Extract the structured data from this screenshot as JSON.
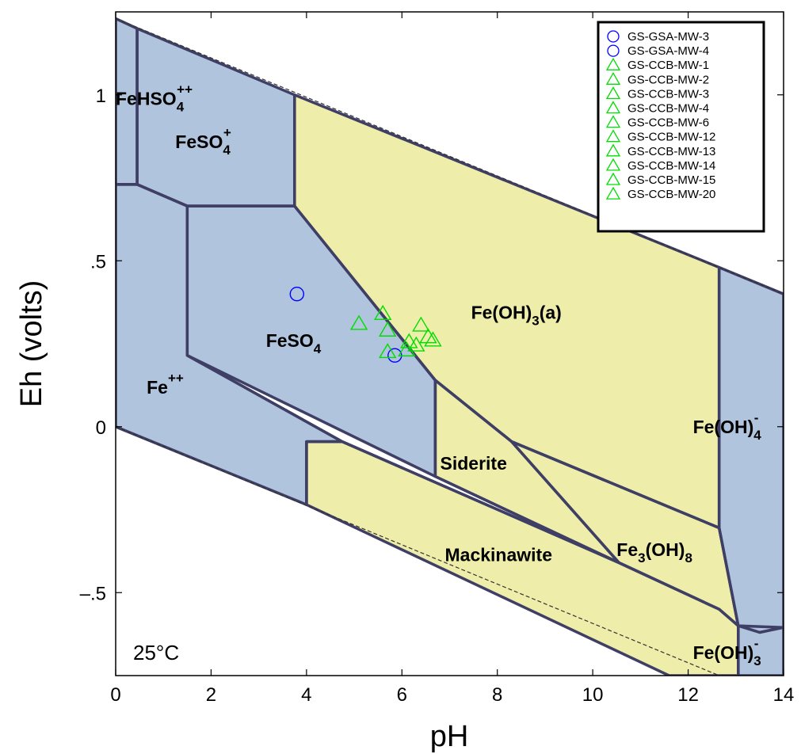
{
  "chart_data": {
    "type": "scatter",
    "title": "",
    "xlabel": "pH",
    "ylabel": "Eh (volts)",
    "xlim": [
      0,
      14
    ],
    "ylim": [
      -0.75,
      1.25
    ],
    "x_ticks": [
      {
        "value": 0,
        "label": "0"
      },
      {
        "value": 2,
        "label": "2"
      },
      {
        "value": 4,
        "label": "4"
      },
      {
        "value": 6,
        "label": "6"
      },
      {
        "value": 8,
        "label": "8"
      },
      {
        "value": 10,
        "label": "10"
      },
      {
        "value": 12,
        "label": "12"
      },
      {
        "value": 14,
        "label": "14"
      }
    ],
    "y_ticks": [
      {
        "value": -0.5,
        "label": "–.5"
      },
      {
        "value": 0,
        "label": "0"
      },
      {
        "value": 0.5,
        "label": ".5"
      },
      {
        "value": 1,
        "label": "1"
      }
    ],
    "temperature_label": "25°C",
    "colors": {
      "aqueous_field": "#b0c4de",
      "mineral_field": "#eeeeaa",
      "boundary": "#3f3f66",
      "gsa_marker": "#0000ff",
      "ccb_marker": "#00dd00"
    },
    "stability_fields": [
      {
        "name": "FeHSO4++",
        "kind": "aqueous",
        "main": "FeHSO",
        "sub": "4",
        "sup": "++",
        "x": 0.0,
        "y": 0.97,
        "polygon": [
          [
            0,
            1.23
          ],
          [
            0.45,
            1.2
          ],
          [
            0.45,
            0.73
          ],
          [
            0,
            0.73
          ]
        ]
      },
      {
        "name": "FeSO4+",
        "kind": "aqueous",
        "main": "FeSO",
        "sub": "4",
        "sup": "+",
        "x": 1.25,
        "y": 0.84,
        "polygon": [
          [
            0.45,
            1.2
          ],
          [
            3.75,
            1.0
          ],
          [
            3.75,
            0.665
          ],
          [
            1.5,
            0.665
          ],
          [
            0.45,
            0.73
          ]
        ]
      },
      {
        "name": "FeSO4",
        "kind": "aqueous",
        "main": "FeSO",
        "sub": "4",
        "sup": "",
        "x": 3.15,
        "y": 0.24,
        "polygon": [
          [
            1.5,
            0.665
          ],
          [
            3.75,
            0.665
          ],
          [
            6.7,
            0.14
          ],
          [
            6.7,
            -0.15
          ],
          [
            1.5,
            0.215
          ]
        ]
      },
      {
        "name": "Fe++",
        "kind": "aqueous",
        "main": "Fe",
        "sub": "",
        "sup": "++",
        "x": 0.65,
        "y": 0.1,
        "polygon": [
          [
            0,
            0.73
          ],
          [
            0.45,
            0.73
          ],
          [
            1.5,
            0.665
          ],
          [
            1.5,
            0.215
          ],
          [
            4.75,
            -0.045
          ],
          [
            4.0,
            -0.045
          ],
          [
            4.0,
            -0.235
          ],
          [
            0,
            0
          ]
        ]
      },
      {
        "name": "Fe(OH)3(a)",
        "kind": "mineral",
        "main": "Fe(OH)",
        "sub": "3",
        "sup": "",
        "x": 7.45,
        "y": 0.325,
        "suffix": "(a)",
        "polygon": [
          [
            3.75,
            1.0
          ],
          [
            12.65,
            0.48
          ],
          [
            12.65,
            -0.305
          ],
          [
            8.3,
            -0.045
          ],
          [
            6.7,
            0.14
          ],
          [
            3.75,
            0.665
          ]
        ]
      },
      {
        "name": "Siderite",
        "kind": "mineral",
        "main": "Siderite",
        "sub": "",
        "sup": "",
        "x": 6.8,
        "y": -0.13,
        "polygon": [
          [
            6.7,
            0.14
          ],
          [
            8.3,
            -0.045
          ],
          [
            10.55,
            -0.41
          ],
          [
            6.7,
            -0.15
          ]
        ]
      },
      {
        "name": "Mackinawite",
        "kind": "mineral",
        "main": "Mackinawite",
        "sub": "",
        "sup": "",
        "x": 6.9,
        "y": -0.405,
        "polygon": [
          [
            4.0,
            -0.045
          ],
          [
            4.75,
            -0.045
          ],
          [
            10.55,
            -0.41
          ],
          [
            12.65,
            -0.55
          ],
          [
            13.05,
            -0.6
          ],
          [
            13.05,
            -0.75
          ],
          [
            11.6,
            -0.75
          ],
          [
            4.0,
            -0.235
          ]
        ]
      },
      {
        "name": "Fe3(OH)8",
        "kind": "mineral",
        "main": "Fe",
        "sub": "3",
        "sup": "",
        "x": 10.5,
        "y": -0.39,
        "suffix": "(OH)",
        "sub2": "8",
        "polygon": [
          [
            8.3,
            -0.045
          ],
          [
            12.65,
            -0.305
          ],
          [
            13.05,
            -0.6
          ],
          [
            12.65,
            -0.55
          ],
          [
            10.55,
            -0.41
          ]
        ]
      },
      {
        "name": "Fe(OH)4-",
        "kind": "aqueous",
        "main": "Fe(OH)",
        "sub": "4",
        "sup": "-",
        "x": 12.1,
        "y": -0.02,
        "polygon": [
          [
            12.65,
            0.48
          ],
          [
            14,
            0.4
          ],
          [
            14,
            -0.605
          ],
          [
            13.5,
            -0.62
          ],
          [
            13.05,
            -0.6
          ],
          [
            12.65,
            -0.305
          ]
        ]
      },
      {
        "name": "Fe(OH)3-",
        "kind": "aqueous",
        "main": "Fe(OH)",
        "sub": "3",
        "sup": "-",
        "x": 12.1,
        "y": -0.7,
        "polygon": [
          [
            13.05,
            -0.6
          ],
          [
            13.5,
            -0.62
          ],
          [
            14,
            -0.605
          ],
          [
            14,
            -0.75
          ],
          [
            13.05,
            -0.75
          ]
        ]
      }
    ],
    "extra_boundaries": [
      [
        [
          0.45,
          1.2
        ],
        [
          0.45,
          0.73
        ],
        [
          0,
          0.73
        ]
      ],
      [
        [
          3.75,
          1.0
        ],
        [
          3.75,
          0.665
        ],
        [
          1.5,
          0.665
        ],
        [
          0.45,
          0.73
        ]
      ],
      [
        [
          1.5,
          0.665
        ],
        [
          1.5,
          0.215
        ],
        [
          4.75,
          -0.045
        ],
        [
          10.55,
          -0.41
        ],
        [
          12.65,
          -0.55
        ],
        [
          13.05,
          -0.6
        ]
      ],
      [
        [
          3.75,
          0.665
        ],
        [
          6.7,
          0.14
        ],
        [
          8.3,
          -0.045
        ],
        [
          12.65,
          -0.305
        ]
      ],
      [
        [
          6.7,
          0.14
        ],
        [
          6.7,
          -0.15
        ],
        [
          10.55,
          -0.41
        ]
      ],
      [
        [
          8.3,
          -0.045
        ],
        [
          10.55,
          -0.41
        ]
      ],
      [
        [
          12.65,
          0.48
        ],
        [
          12.65,
          -0.305
        ],
        [
          13.05,
          -0.6
        ],
        [
          14,
          -0.605
        ]
      ],
      [
        [
          13.05,
          -0.6
        ],
        [
          13.05,
          -0.75
        ]
      ],
      [
        [
          4.0,
          -0.235
        ],
        [
          4.0,
          -0.045
        ],
        [
          4.75,
          -0.045
        ]
      ]
    ],
    "water_limits": [
      [
        [
          0,
          1.23
        ],
        [
          14,
          0.4
        ]
      ],
      [
        [
          0,
          0
        ],
        [
          14,
          -0.83
        ]
      ]
    ],
    "series": [
      {
        "name": "GS-GSA-MW-3",
        "marker": "circle",
        "color": "#0000ff",
        "x": 3.8,
        "y": 0.4
      },
      {
        "name": "GS-GSA-MW-4",
        "marker": "circle",
        "color": "#0000ff",
        "x": 5.85,
        "y": 0.215
      },
      {
        "name": "GS-CCB-MW-1",
        "marker": "triangle",
        "color": "#00dd00",
        "x": 5.1,
        "y": 0.31
      },
      {
        "name": "GS-CCB-MW-2",
        "marker": "triangle",
        "color": "#00dd00",
        "x": 5.6,
        "y": 0.34
      },
      {
        "name": "GS-CCB-MW-3",
        "marker": "triangle",
        "color": "#00dd00",
        "x": 5.7,
        "y": 0.29
      },
      {
        "name": "GS-CCB-MW-4",
        "marker": "triangle",
        "color": "#00dd00",
        "x": 5.7,
        "y": 0.225
      },
      {
        "name": "GS-CCB-MW-6",
        "marker": "triangle",
        "color": "#00dd00",
        "x": 6.1,
        "y": 0.23
      },
      {
        "name": "GS-CCB-MW-12",
        "marker": "triangle",
        "color": "#00dd00",
        "x": 6.15,
        "y": 0.255
      },
      {
        "name": "GS-CCB-MW-13",
        "marker": "triangle",
        "color": "#00dd00",
        "x": 6.3,
        "y": 0.245
      },
      {
        "name": "GS-CCB-MW-14",
        "marker": "triangle",
        "color": "#00dd00",
        "x": 6.4,
        "y": 0.305
      },
      {
        "name": "GS-CCB-MW-15",
        "marker": "triangle",
        "color": "#00dd00",
        "x": 6.55,
        "y": 0.27
      },
      {
        "name": "GS-CCB-MW-20",
        "marker": "triangle",
        "color": "#00dd00",
        "x": 6.65,
        "y": 0.26
      }
    ],
    "legend_position": "top-right"
  }
}
